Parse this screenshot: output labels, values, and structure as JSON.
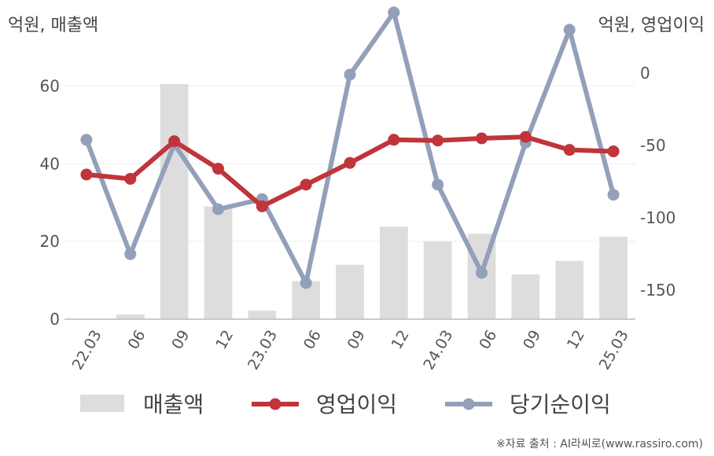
{
  "units": {
    "left": "억원, 매출액",
    "right": "억원, 영업이익"
  },
  "source": "※자료 출처 : AI라씨로(www.rassiro.com)",
  "colors": {
    "revenue": "#dddddd",
    "operating": "#c0343a",
    "net": "#93a0ba",
    "grid": "#eeeeee",
    "axis": "#bbbbbb"
  },
  "chart_data": {
    "type": "bar",
    "categories": [
      "22.03",
      "06",
      "09",
      "12",
      "23.03",
      "06",
      "09",
      "12",
      "24.03",
      "06",
      "09",
      "12",
      "25.03"
    ],
    "series": [
      {
        "name": "매출액",
        "type": "bar",
        "axis": "left",
        "values": [
          0,
          1.2,
          60.5,
          29,
          2.2,
          9.8,
          14,
          23.8,
          20,
          22,
          11.5,
          15,
          21.2
        ]
      },
      {
        "name": "영업이익",
        "type": "line",
        "axis": "right",
        "values": [
          -70,
          -73,
          -47,
          -66,
          -92,
          -77,
          -62,
          -46,
          -46.5,
          -45,
          -44,
          -53,
          -54
        ]
      },
      {
        "name": "당기순이익",
        "type": "line",
        "axis": "right",
        "values": [
          -46,
          -125,
          -49,
          -94,
          -87,
          -145,
          -1,
          42,
          -77,
          -138,
          -48,
          30,
          -84
        ]
      }
    ],
    "yleft": {
      "ticks": [
        0,
        20,
        40,
        60
      ],
      "ylim": [
        0,
        70
      ]
    },
    "yright": {
      "ticks": [
        0,
        -50,
        -100,
        -150
      ],
      "ylim": [
        -170,
        18
      ]
    },
    "legend": {
      "position": "bottom",
      "items": [
        "매출액",
        "영업이익",
        "당기순이익"
      ]
    },
    "grid": true
  }
}
